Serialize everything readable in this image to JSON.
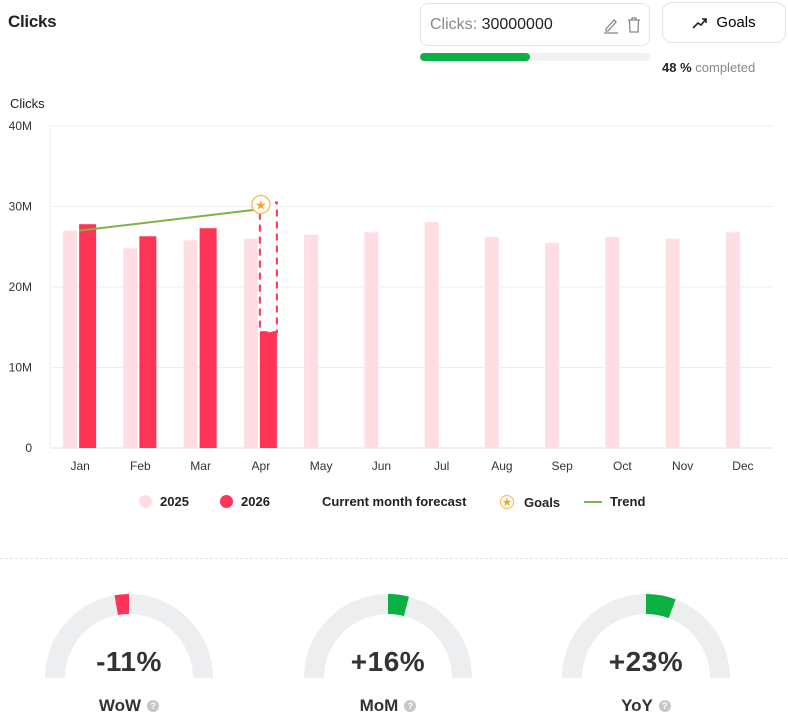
{
  "header": {
    "title": "Clicks",
    "goal_label": "Clicks:",
    "goal_value": "30000000",
    "goals_button": "Goals",
    "progress_percent": 48,
    "progress_value": "48 %",
    "progress_suffix": "completed"
  },
  "colors": {
    "y2025": "#ffdde3",
    "y2026": "#ff3355",
    "trend": "#7cb342",
    "goal": "#f5a623",
    "progress": "#0bb042",
    "gauge_bg": "#eceef0",
    "gauge_neg": "#ff3355",
    "gauge_pos": "#0bb042"
  },
  "chart_data": {
    "type": "bar",
    "ylabel": "Clicks",
    "ylim": [
      0,
      40000000
    ],
    "yticks": [
      "0",
      "10M",
      "20M",
      "30M",
      "40M"
    ],
    "categories": [
      "Jan",
      "Feb",
      "Mar",
      "Apr",
      "May",
      "Jun",
      "Jul",
      "Aug",
      "Sep",
      "Oct",
      "Nov",
      "Dec"
    ],
    "series": [
      {
        "name": "2025",
        "values": [
          27000000,
          24800000,
          25800000,
          26000000,
          26500000,
          26800000,
          28100000,
          26200000,
          25500000,
          26200000,
          26000000,
          26800000
        ]
      },
      {
        "name": "2026",
        "values": [
          27800000,
          26300000,
          27300000,
          14400000,
          null,
          null,
          null,
          null,
          null,
          null,
          null,
          null
        ]
      }
    ],
    "forecast": {
      "name": "Current month forecast",
      "month": "Apr",
      "value": 30500000
    },
    "goal": {
      "name": "Goals",
      "month": "Apr",
      "value": 30000000
    },
    "trend": {
      "name": "Trend",
      "points": [
        {
          "month": "Jan",
          "value": 27000000
        },
        {
          "month": "Apr",
          "value": 29700000
        }
      ]
    },
    "grid": true,
    "legend": "bottom"
  },
  "gauges": [
    {
      "label": "WoW",
      "value": "-11%",
      "pct": -11
    },
    {
      "label": "MoM",
      "value": "+16%",
      "pct": 16
    },
    {
      "label": "YoY",
      "value": "+23%",
      "pct": 23
    }
  ],
  "help_glyph": "?"
}
